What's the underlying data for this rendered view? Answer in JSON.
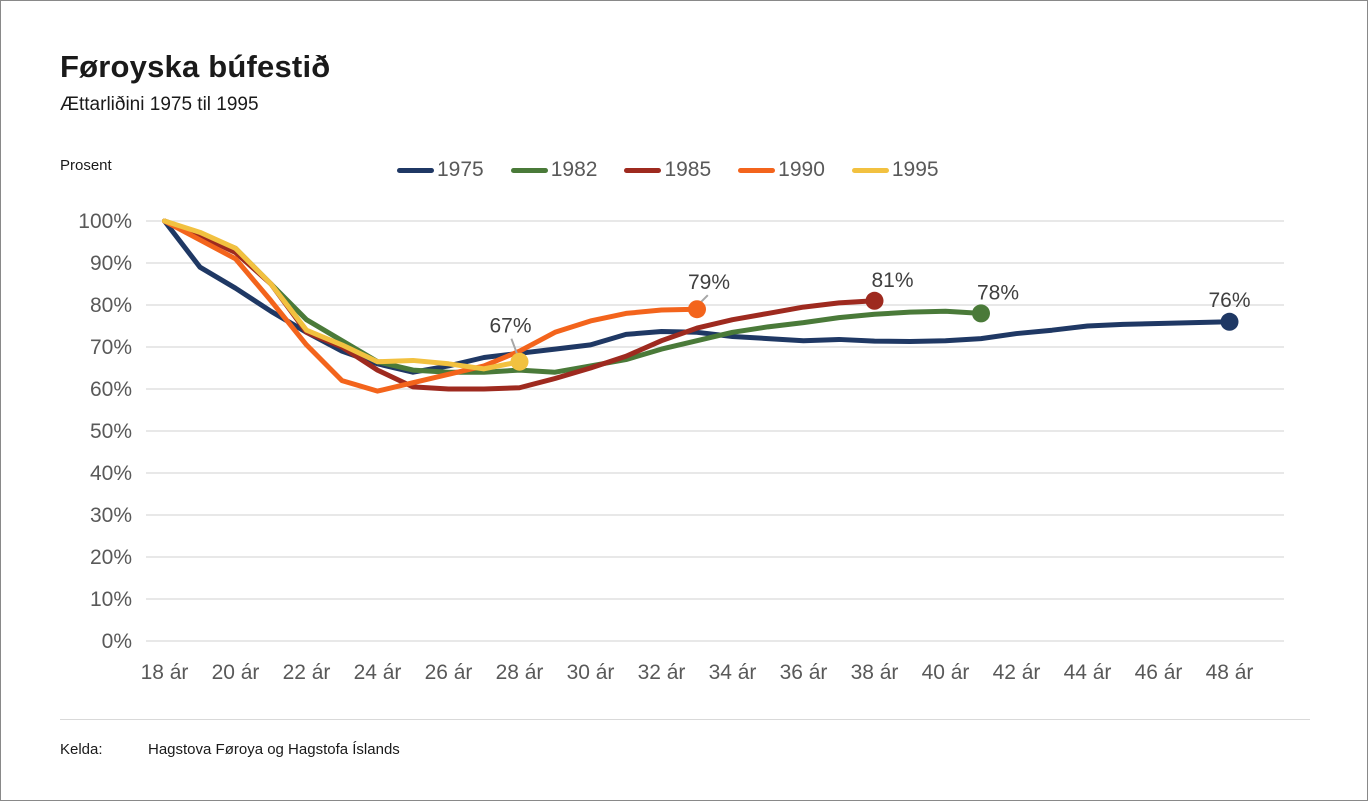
{
  "header": {
    "title": "Føroyska búfestið",
    "subtitle": "Ættarliðini 1975 til 1995",
    "axis_unit_label": "Prosent"
  },
  "footer": {
    "source_label": "Kelda:",
    "source_text": "Hagstova Føroya og Hagstofa Íslands"
  },
  "chart_data": {
    "type": "line",
    "title": "Føroyska búfestið",
    "subtitle": "Ættarliðini 1975 til 1995",
    "ylabel": "Prosent",
    "xlabel": "",
    "ylim": [
      0,
      100
    ],
    "y_ticks": [
      "0%",
      "10%",
      "20%",
      "30%",
      "40%",
      "50%",
      "60%",
      "70%",
      "80%",
      "90%",
      "100%"
    ],
    "x_ticks": [
      "18 ár",
      "20 ár",
      "22 ár",
      "24 ár",
      "26 ár",
      "28 ár",
      "30 ár",
      "32 ár",
      "34 ár",
      "36 ár",
      "38 ár",
      "40 ár",
      "42 ár",
      "44 ár",
      "46 ár",
      "48 ár"
    ],
    "x_range": [
      18,
      48
    ],
    "grid": "horizontal",
    "legend_position": "top",
    "series": [
      {
        "name": "1975",
        "color": "#1f3864",
        "start_age": 18,
        "values": [
          100,
          89,
          84,
          78.5,
          73.5,
          69,
          66,
          64,
          65.5,
          67.5,
          68.5,
          69.5,
          70.5,
          73,
          73.7,
          73.5,
          72.5,
          72,
          71.5,
          71.8,
          71.4,
          71.3,
          71.5,
          72,
          73.2,
          74,
          75,
          75.4,
          75.6,
          75.8,
          76
        ],
        "end_label": {
          "text": "76%",
          "dx": 0,
          "dy": -22,
          "pin": false
        }
      },
      {
        "name": "1982",
        "color": "#4a7a39",
        "start_age": 18,
        "values": [
          100,
          97,
          93.5,
          85,
          76.5,
          71.5,
          66.5,
          64.5,
          64,
          64,
          64.5,
          64,
          65.5,
          67,
          69.5,
          71.5,
          73.5,
          74.8,
          75.8,
          77,
          77.8,
          78.3,
          78.5,
          78
        ],
        "end_label": {
          "text": "78%",
          "dx": 17,
          "dy": -21,
          "pin": false
        }
      },
      {
        "name": "1985",
        "color": "#9e2a1f",
        "start_age": 18,
        "values": [
          100,
          96.5,
          92.5,
          85,
          73.5,
          70,
          64.5,
          60.5,
          60,
          60,
          60.3,
          62.5,
          65,
          67.8,
          71.5,
          74.5,
          76.5,
          78,
          79.5,
          80.5,
          81
        ],
        "end_label": {
          "text": "81%",
          "dx": 18,
          "dy": -21,
          "pin": false
        }
      },
      {
        "name": "1990",
        "color": "#f3641c",
        "start_age": 18,
        "values": [
          100,
          95.5,
          91,
          81,
          70.5,
          62,
          59.5,
          61.5,
          63.5,
          65.5,
          69,
          73.5,
          76.2,
          78,
          78.8,
          79
        ],
        "end_label": {
          "text": "79%",
          "dx": 12,
          "dy": -27,
          "pin": true
        }
      },
      {
        "name": "1995",
        "color": "#f2c140",
        "start_age": 18,
        "values": [
          100,
          97.3,
          93.5,
          85,
          74,
          70.5,
          66.5,
          66.8,
          66,
          64.8,
          66.5
        ],
        "end_label": {
          "text": "67%",
          "dx": -9,
          "dy": -36,
          "pin": true
        }
      }
    ]
  }
}
